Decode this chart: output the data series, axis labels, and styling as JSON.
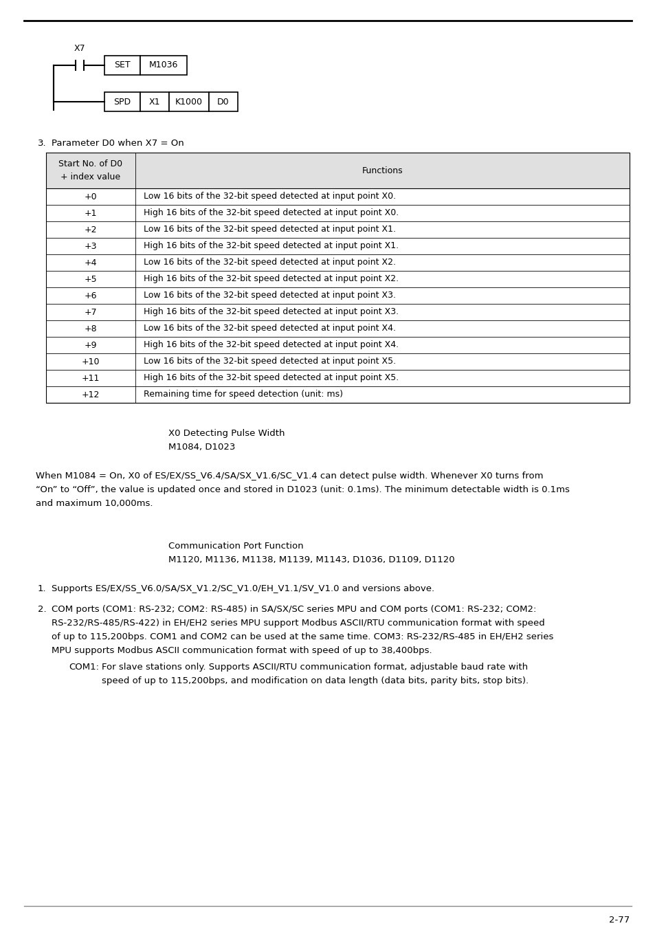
{
  "bg_color": "#ffffff",
  "page_number": "2-77",
  "table_header_bg": "#e0e0e0",
  "table_header_col1": "Start No. of D0\n+ index value",
  "table_header_col2": "Functions",
  "table_rows": [
    [
      "+0",
      "Low 16 bits of the 32-bit speed detected at input point X0."
    ],
    [
      "+1",
      "High 16 bits of the 32-bit speed detected at input point X0."
    ],
    [
      "+2",
      "Low 16 bits of the 32-bit speed detected at input point X1."
    ],
    [
      "+3",
      "High 16 bits of the 32-bit speed detected at input point X1."
    ],
    [
      "+4",
      "Low 16 bits of the 32-bit speed detected at input point X2."
    ],
    [
      "+5",
      "High 16 bits of the 32-bit speed detected at input point X2."
    ],
    [
      "+6",
      "Low 16 bits of the 32-bit speed detected at input point X3."
    ],
    [
      "+7",
      "High 16 bits of the 32-bit speed detected at input point X3."
    ],
    [
      "+8",
      "Low 16 bits of the 32-bit speed detected at input point X4."
    ],
    [
      "+9",
      "High 16 bits of the 32-bit speed detected at input point X4."
    ],
    [
      "+10",
      "Low 16 bits of the 32-bit speed detected at input point X5."
    ],
    [
      "+11",
      "High 16 bits of the 32-bit speed detected at input point X5."
    ],
    [
      "+12",
      "Remaining time for speed detection (unit: ms)"
    ]
  ],
  "subhead1_line1": "X0 Detecting Pulse Width",
  "subhead1_line2": "M1084, D1023",
  "para1_lines": [
    "When M1084 = On, X0 of ES/EX/SS_V6.4/SA/SX_V1.6/SC_V1.4 can detect pulse width. Whenever X0 turns from",
    "“On” to “Off”, the value is updated once and stored in D1023 (unit: 0.1ms). The minimum detectable width is 0.1ms",
    "and maximum 10,000ms."
  ],
  "subhead2_line1": "Communication Port Function",
  "subhead2_line2": "M1120, M1136, M1138, M1139, M1143, D1036, D1109, D1120",
  "list1_text": "Supports ES/EX/SS_V6.0/SA/SX_V1.2/SC_V1.0/EH_V1.1/SV_V1.0 and versions above.",
  "list2_lines": [
    "COM ports (COM1: RS-232; COM2: RS-485) in SA/SX/SC series MPU and COM ports (COM1: RS-232; COM2:",
    "RS-232/RS-485/RS-422) in EH/EH2 series MPU support Modbus ASCII/RTU communication format with speed",
    "of up to 115,200bps. COM1 and COM2 can be used at the same time. COM3: RS-232/RS-485 in EH/EH2 series",
    "MPU supports Modbus ASCII communication format with speed of up to 38,400bps."
  ],
  "com1_label": "COM1:",
  "com1_lines": [
    "For slave stations only. Supports ASCII/RTU communication format, adjustable baud rate with",
    "speed of up to 115,200bps, and modification on data length (data bits, parity bits, stop bits)."
  ]
}
